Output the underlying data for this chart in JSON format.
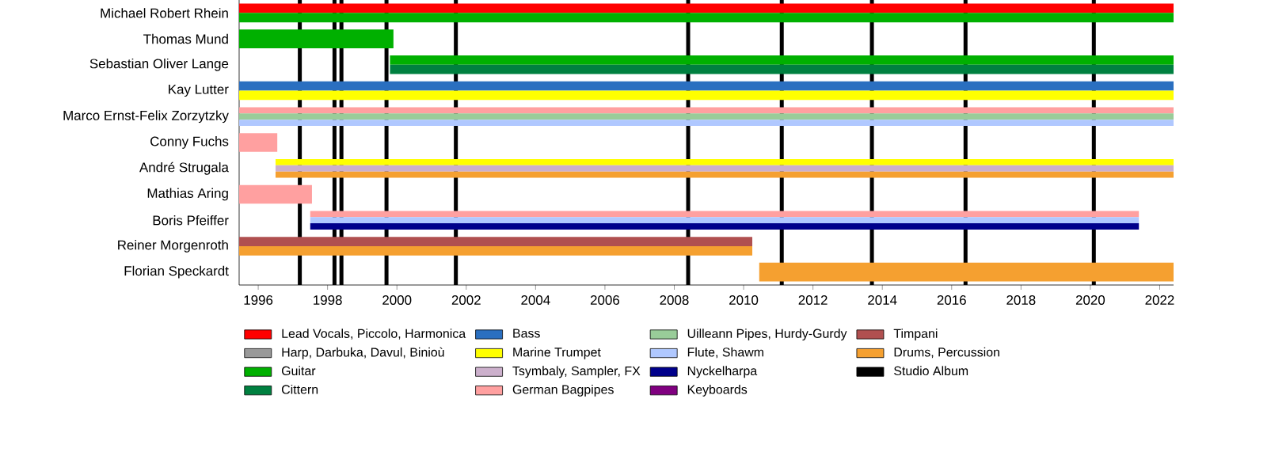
{
  "chart_data": {
    "type": "bar",
    "orientation": "horizontal",
    "categories": [
      "Michael Robert Rhein",
      "Thomas Mund",
      "Sebastian Oliver Lange",
      "Kay Lutter",
      "Marco Ernst-Felix Zorzytzky",
      "Conny Fuchs",
      "André Strugala",
      "Mathias Aring",
      "Boris Pfeiffer",
      "Reiner Morgenroth",
      "Florian Speckardt"
    ],
    "xlim": [
      1995.45,
      2022.4
    ],
    "xticks": [
      1996,
      1998,
      2000,
      2002,
      2004,
      2006,
      2008,
      2010,
      2012,
      2014,
      2016,
      2018,
      2020,
      2022
    ],
    "legend": "bottom",
    "series": [
      {
        "name": "Lead Vocals, Piccolo, Harmonica",
        "color": "#ff0000",
        "base": [
          1995.45,
          null,
          null,
          null,
          null,
          null,
          null,
          null,
          null,
          null,
          null
        ],
        "values": [
          26.95,
          null,
          null,
          null,
          null,
          null,
          null,
          null,
          null,
          null,
          null
        ]
      },
      {
        "name": "Harp, Darbuka, Davul, Binioù",
        "color": "#999999",
        "base": [
          null,
          null,
          null,
          null,
          null,
          null,
          null,
          null,
          null,
          null,
          null
        ],
        "values": [
          null,
          null,
          null,
          null,
          null,
          null,
          null,
          null,
          null,
          null,
          null
        ]
      },
      {
        "name": "Guitar",
        "color": "#00b000",
        "base": [
          1995.45,
          1995.45,
          1999.8,
          null,
          null,
          null,
          null,
          null,
          null,
          null,
          null
        ],
        "values": [
          26.95,
          4.45,
          22.6,
          null,
          null,
          null,
          null,
          null,
          null,
          null,
          null
        ]
      },
      {
        "name": "Cittern",
        "color": "#008040",
        "base": [
          null,
          null,
          1999.8,
          null,
          null,
          null,
          null,
          null,
          null,
          null,
          null
        ],
        "values": [
          null,
          null,
          22.6,
          null,
          null,
          null,
          null,
          null,
          null,
          null,
          null
        ]
      },
      {
        "name": "Bass",
        "color": "#2a6fc0",
        "base": [
          null,
          null,
          null,
          1995.45,
          null,
          null,
          null,
          null,
          null,
          null,
          null
        ],
        "values": [
          null,
          null,
          null,
          26.95,
          null,
          null,
          null,
          null,
          null,
          null,
          null
        ]
      },
      {
        "name": "Marine Trumpet",
        "color": "#ffff00",
        "base": [
          null,
          null,
          null,
          1995.45,
          null,
          null,
          1996.5,
          null,
          null,
          null,
          null
        ],
        "values": [
          null,
          null,
          null,
          26.95,
          null,
          null,
          25.9,
          null,
          null,
          null,
          null
        ]
      },
      {
        "name": "Tsymbaly, Sampler, FX",
        "color": "#ccb0cc",
        "base": [
          null,
          null,
          null,
          null,
          null,
          null,
          1996.5,
          null,
          null,
          null,
          null
        ],
        "values": [
          null,
          null,
          null,
          null,
          null,
          null,
          25.9,
          null,
          null,
          null,
          null
        ]
      },
      {
        "name": "German Bagpipes",
        "color": "#ffa0a0",
        "base": [
          null,
          null,
          null,
          null,
          1995.45,
          1995.45,
          null,
          1995.45,
          1997.5,
          null,
          null
        ],
        "values": [
          null,
          null,
          null,
          null,
          26.95,
          1.1,
          null,
          2.1,
          23.9,
          null,
          null
        ]
      },
      {
        "name": "Uilleann Pipes, Hurdy-Gurdy",
        "color": "#99cc99",
        "base": [
          null,
          null,
          null,
          null,
          1995.45,
          null,
          null,
          null,
          null,
          null,
          null
        ],
        "values": [
          null,
          null,
          null,
          null,
          26.95,
          null,
          null,
          null,
          null,
          null,
          null
        ]
      },
      {
        "name": "Flute, Shawm",
        "color": "#b0c8ff",
        "base": [
          null,
          null,
          null,
          null,
          1995.45,
          null,
          null,
          null,
          1997.5,
          null,
          null
        ],
        "values": [
          null,
          null,
          null,
          null,
          26.95,
          null,
          null,
          null,
          23.9,
          null,
          null
        ]
      },
      {
        "name": "Nyckelharpa",
        "color": "#00008b",
        "base": [
          null,
          null,
          null,
          null,
          null,
          null,
          null,
          null,
          1997.5,
          null,
          null
        ],
        "values": [
          null,
          null,
          null,
          null,
          null,
          null,
          null,
          null,
          23.9,
          null,
          null
        ]
      },
      {
        "name": "Keyboards",
        "color": "#800080",
        "base": [
          null,
          null,
          null,
          null,
          null,
          null,
          null,
          null,
          null,
          null,
          null
        ],
        "values": [
          null,
          null,
          null,
          null,
          null,
          null,
          null,
          null,
          null,
          null,
          null
        ]
      },
      {
        "name": "Timpani",
        "color": "#b05050",
        "base": [
          null,
          null,
          null,
          null,
          null,
          null,
          null,
          null,
          null,
          1995.45,
          null
        ],
        "values": [
          null,
          null,
          null,
          null,
          null,
          null,
          null,
          null,
          null,
          14.8,
          null
        ]
      },
      {
        "name": "Drums, Percussion",
        "color": "#f5a030",
        "base": [
          null,
          null,
          null,
          null,
          null,
          null,
          1996.5,
          null,
          null,
          1995.45,
          2010.45
        ],
        "values": [
          null,
          null,
          null,
          null,
          null,
          null,
          25.9,
          null,
          null,
          14.8,
          11.95
        ]
      }
    ],
    "ref_lines": [
      {
        "axis": "x",
        "value": 1997.2,
        "label": "Studio Album",
        "color": "#000000"
      },
      {
        "axis": "x",
        "value": 1998.2,
        "color": "#000000"
      },
      {
        "axis": "x",
        "value": 1998.4,
        "color": "#000000"
      },
      {
        "axis": "x",
        "value": 1999.7,
        "color": "#000000"
      },
      {
        "axis": "x",
        "value": 2001.7,
        "color": "#000000"
      },
      {
        "axis": "x",
        "value": 2008.4,
        "color": "#000000"
      },
      {
        "axis": "x",
        "value": 2011.1,
        "color": "#000000"
      },
      {
        "axis": "x",
        "value": 2013.7,
        "color": "#000000"
      },
      {
        "axis": "x",
        "value": 2016.4,
        "color": "#000000"
      },
      {
        "axis": "x",
        "value": 2020.1,
        "color": "#000000"
      }
    ]
  }
}
